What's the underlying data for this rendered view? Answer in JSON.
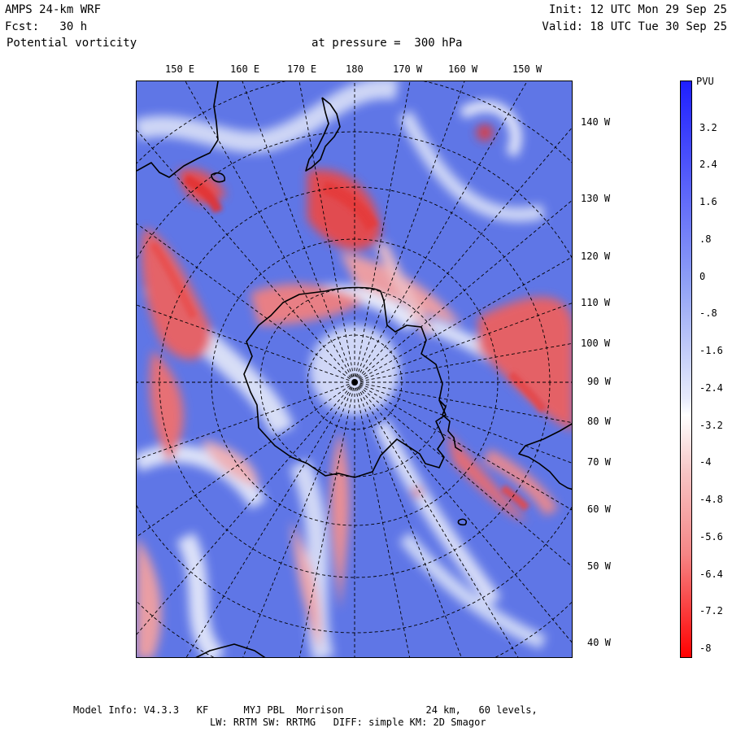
{
  "header": {
    "model": "AMPS 24-km WRF",
    "forecast": "Fcst:   30 h",
    "field": "Potential vorticity",
    "level": "at pressure =  300 hPa",
    "init": "Init: 12 UTC Mon 29 Sep 25",
    "valid": "Valid: 18 UTC Tue 30 Sep 25"
  },
  "top_labels": [
    "150 E",
    "160 E",
    "170 E",
    "180",
    "170 W",
    "160 W",
    "150 W"
  ],
  "right_labels": [
    "140 W",
    "130 W",
    "120 W",
    "110 W",
    "100 W",
    "90 W",
    "80 W",
    "70 W",
    "60 W",
    "50 W",
    "40 W"
  ],
  "colorbar": {
    "title": "PVU",
    "ticks": [
      "3.2",
      "2.4",
      "1.6",
      ".8",
      "0",
      "-.8",
      "-1.6",
      "-2.4",
      "-3.2",
      "-4",
      "-4.8",
      "-5.6",
      "-6.4",
      "-7.2",
      "-8"
    ],
    "max_color": "#1f1fff",
    "mid_color": "#ffffff",
    "min_color": "#ff0000"
  },
  "footer": {
    "line1": "Model Info: V4.3.3   KF      MYJ PBL  Morrison              24 km,   60 levels,",
    "line2": "LW: RRTM SW: RRTMG   DIFF: simple KM: 2D Smagor"
  },
  "colors": {
    "ocean_blue": "#5a72e6",
    "light_blue": "#c9d2f6",
    "red": "#ee4848",
    "pink": "#f6b6b6"
  }
}
